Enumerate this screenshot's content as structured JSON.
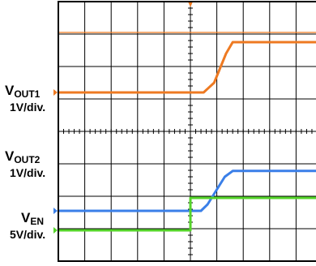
{
  "chart_data": {
    "type": "line",
    "title": "",
    "xlabel": "",
    "ylabel": "",
    "grid": true,
    "x_divisions": 10,
    "y_divisions": 8,
    "x_range": [
      0,
      10
    ],
    "y_range": [
      0,
      8
    ],
    "trigger_marker_x": 5.0,
    "upper_reference_level": 7.05,
    "series": [
      {
        "key": "vout1",
        "name": "VOUT1",
        "label_main": "V",
        "label_sub": "OUT1",
        "scale": "1V/div.",
        "ground_marker": "1",
        "color": "#ee7a22",
        "x": [
          0,
          5.5,
          5.9,
          6.35,
          6.6,
          10
        ],
        "y": [
          5.2,
          5.2,
          5.5,
          6.4,
          6.75,
          6.75
        ]
      },
      {
        "key": "vout2",
        "name": "VOUT2",
        "label_main": "V",
        "label_sub": "OUT2",
        "scale": "1V/div.",
        "ground_marker": "2",
        "color": "#3a7fe8",
        "x": [
          0,
          5.4,
          5.65,
          6.3,
          6.6,
          10
        ],
        "y": [
          1.55,
          1.55,
          1.75,
          2.6,
          2.78,
          2.78
        ]
      },
      {
        "key": "ven",
        "name": "VEN",
        "label_main": "V",
        "label_sub": "EN",
        "scale": "5V/div.",
        "ground_marker": "3",
        "color": "#55d42a",
        "x": [
          0,
          5.0,
          5.0,
          10
        ],
        "y": [
          0.95,
          0.95,
          1.95,
          1.95
        ]
      }
    ]
  }
}
